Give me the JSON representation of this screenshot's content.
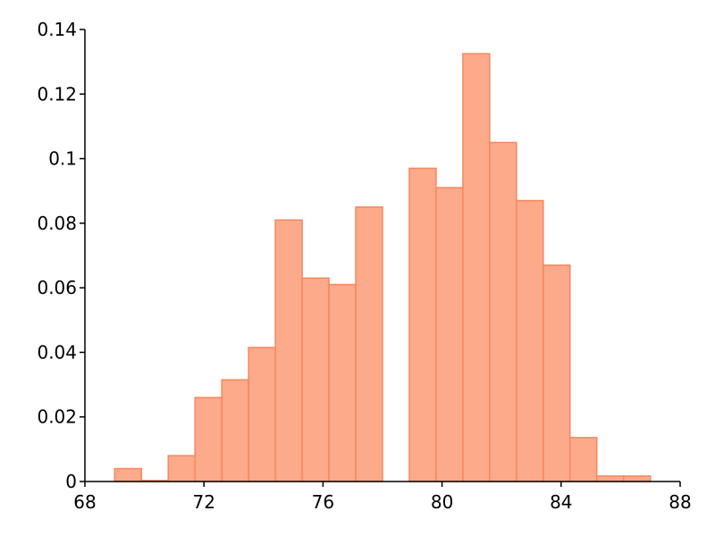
{
  "chart_data": {
    "type": "histogram",
    "bins": [
      69,
      69.9,
      70.8,
      71.7,
      72.6,
      73.5,
      74.4,
      75.3,
      76.2,
      77.1,
      78,
      78.9,
      79.8,
      80.7,
      81.6,
      82.5,
      83.4,
      84.3,
      85.2,
      86.1,
      87
    ],
    "values": [
      0.004,
      0.0003,
      0.008,
      0.026,
      0.0315,
      0.0415,
      0.081,
      0.063,
      0.061,
      0.085,
      0,
      0.097,
      0.091,
      0.1325,
      0.105,
      0.087,
      0.067,
      0.0136,
      0.0017,
      0.0017
    ],
    "color": "#fcaa89",
    "edge_color": "#f5875f",
    "xlim": [
      68,
      88
    ],
    "xticks": [
      68,
      72,
      76,
      80,
      84,
      88
    ],
    "ylim": [
      0,
      0.14
    ],
    "yticks": [
      0,
      0.02,
      0.04,
      0.06,
      0.08,
      0.1,
      0.12,
      0.14
    ],
    "grid": false
  }
}
